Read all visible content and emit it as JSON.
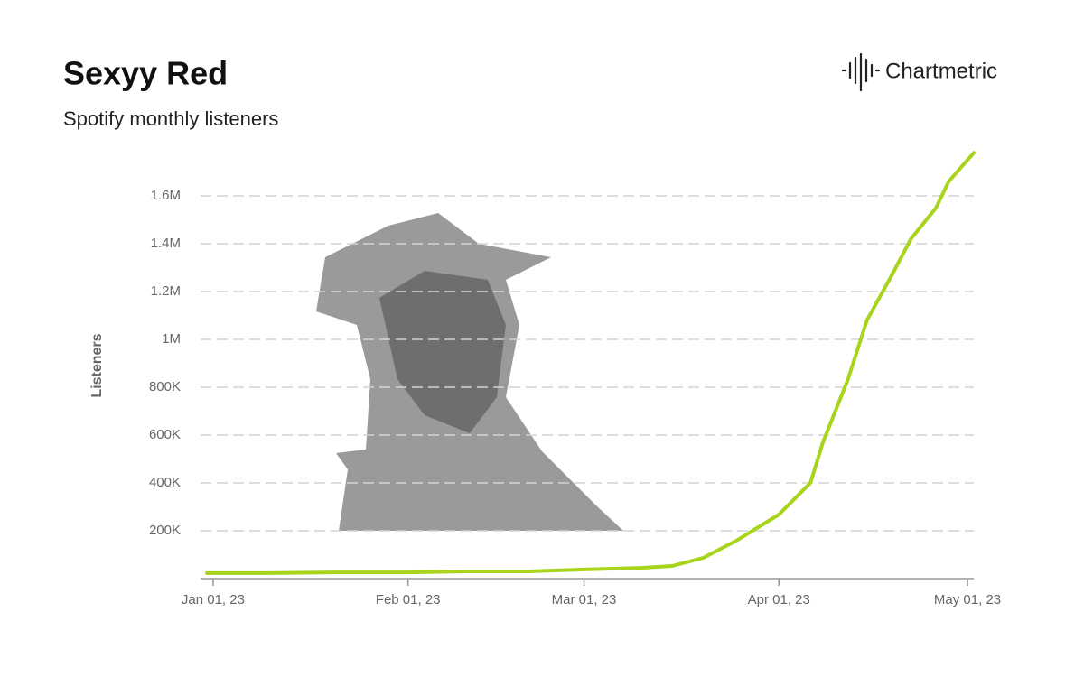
{
  "chart_data": {
    "type": "line",
    "title": "Sexyy Red",
    "subtitle": "Spotify monthly listeners",
    "brand": "Chartmetric",
    "y_label": "Listeners",
    "x": [
      "2022-12-31",
      "2023-01-10",
      "2023-01-20",
      "2023-02-01",
      "2023-02-10",
      "2023-02-20",
      "2023-03-01",
      "2023-03-10",
      "2023-03-15",
      "2023-03-20",
      "2023-03-25",
      "2023-04-01",
      "2023-04-06",
      "2023-04-08",
      "2023-04-12",
      "2023-04-15",
      "2023-04-19",
      "2023-04-22",
      "2023-04-26",
      "2023-04-28",
      "2023-05-02"
    ],
    "values": [
      23000,
      23000,
      26000,
      26000,
      30000,
      30000,
      38000,
      45000,
      53000,
      87000,
      155000,
      268000,
      400000,
      570000,
      834000,
      1080000,
      1270000,
      1420000,
      1550000,
      1660000,
      1780000
    ],
    "color": "#a8d41c",
    "xlim": [
      "2022-12-30",
      "2023-05-02"
    ],
    "xticks": [
      {
        "value": "2023-01-01",
        "label": "Jan 01, 23"
      },
      {
        "value": "2023-02-01",
        "label": "Feb 01, 23"
      },
      {
        "value": "2023-03-01",
        "label": "Mar 01, 23"
      },
      {
        "value": "2023-04-01",
        "label": "Apr 01, 23"
      },
      {
        "value": "2023-05-01",
        "label": "May 01, 23"
      }
    ],
    "ylim": [
      0,
      1800000
    ],
    "yticks": [
      {
        "value": 200000,
        "label": "200K"
      },
      {
        "value": 400000,
        "label": "400K"
      },
      {
        "value": 600000,
        "label": "600K"
      },
      {
        "value": 800000,
        "label": "800K"
      },
      {
        "value": 1000000,
        "label": "1M"
      },
      {
        "value": 1200000,
        "label": "1.2M"
      },
      {
        "value": 1400000,
        "label": "1.4M"
      },
      {
        "value": 1600000,
        "label": "1.6M"
      }
    ],
    "grid": true
  }
}
